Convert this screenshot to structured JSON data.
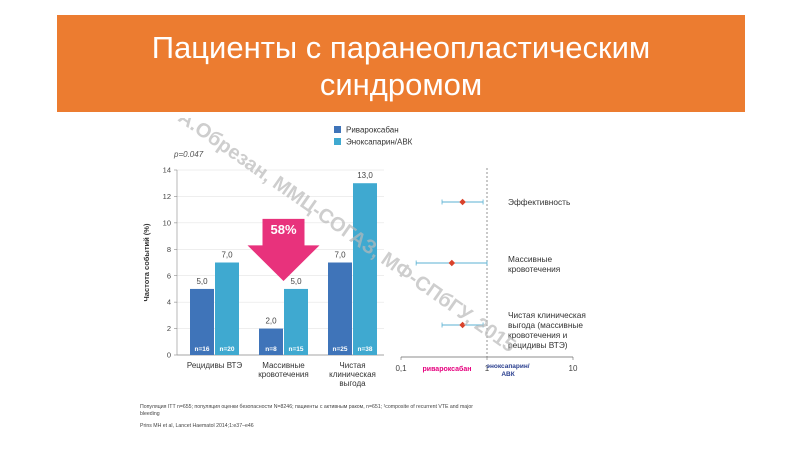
{
  "title": "Пациенты с паранеопластическим синдромом",
  "title_lines": [
    "Пациенты с паранеопластическим",
    "синдромом"
  ],
  "colors": {
    "title_bg": "#ec7c30",
    "series_dark": "#3f74b9",
    "series_light": "#3fa9d0",
    "arrow": "#e8327c",
    "forest_point": "#d9422b",
    "forest_ci": "#5bb2d3",
    "watermark": "#b9b9b9"
  },
  "watermark": "А.Обрезан, ММЦ-СОГАЗ, МФ-СПбГУ, 2015",
  "chart_data": [
    {
      "type": "bar",
      "categories": [
        "Рецидивы ВТЭ",
        "Массивные кровотечения",
        "Чистая клиническая выгода"
      ],
      "category_lines": [
        [
          "Рецидивы ВТЭ"
        ],
        [
          "Массивные",
          "кровотечения"
        ],
        [
          "Чистая",
          "клиническая",
          "выгода"
        ]
      ],
      "series": [
        {
          "name": "Ривароксабан",
          "values": [
            5.0,
            2.0,
            7.0
          ],
          "labels": [
            "5,0",
            "2,0",
            "7,0"
          ],
          "n": [
            "n=16",
            "n=8",
            "n=25"
          ]
        },
        {
          "name": "Эноксапарин/АВК",
          "values": [
            7.0,
            5.0,
            13.0
          ],
          "labels": [
            "7,0",
            "5,0",
            "13,0"
          ],
          "n": [
            "n=20",
            "n=15",
            "n=38"
          ]
        }
      ],
      "ylabel": "Частота событий (%)",
      "ylim": [
        0,
        14
      ],
      "yticks": [
        0,
        2,
        4,
        6,
        8,
        10,
        12,
        14
      ],
      "p_value": "p=0.047",
      "annotation": "58%",
      "legend_position": "top"
    },
    {
      "type": "scatter",
      "subtype": "forest",
      "x_scale": "log",
      "xlim": [
        0.1,
        10
      ],
      "xticks": [
        0.1,
        1,
        10
      ],
      "xtick_labels": [
        "0,1",
        "1",
        "10"
      ],
      "reference_line": 1,
      "left_label": "ривароксабан",
      "right_label_lines": [
        "эноксапарин/",
        "АВК"
      ],
      "rows": [
        {
          "label_lines": [
            "Эффективность"
          ],
          "estimate": 0.52,
          "ci": [
            0.3,
            0.9
          ]
        },
        {
          "label_lines": [
            "Массивные",
            "кровотечения"
          ],
          "estimate": 0.39,
          "ci": [
            0.15,
            1.0
          ]
        },
        {
          "label_lines": [
            "Чистая клиническая",
            "выгода (массивные",
            "кровотечения и",
            "рецидивы ВТЭ)"
          ],
          "estimate": 0.52,
          "ci": [
            0.3,
            0.9
          ]
        }
      ]
    }
  ],
  "footnotes": [
    "Популяция ITT n=655; популяция оценки безопасности N=8246; пациенты с активным раком, n=651; ¹composite of recurrent VTE and major",
    "bleeding",
    "Prins MH et al, Lancet Haematol 2014;1:e37–e46"
  ]
}
